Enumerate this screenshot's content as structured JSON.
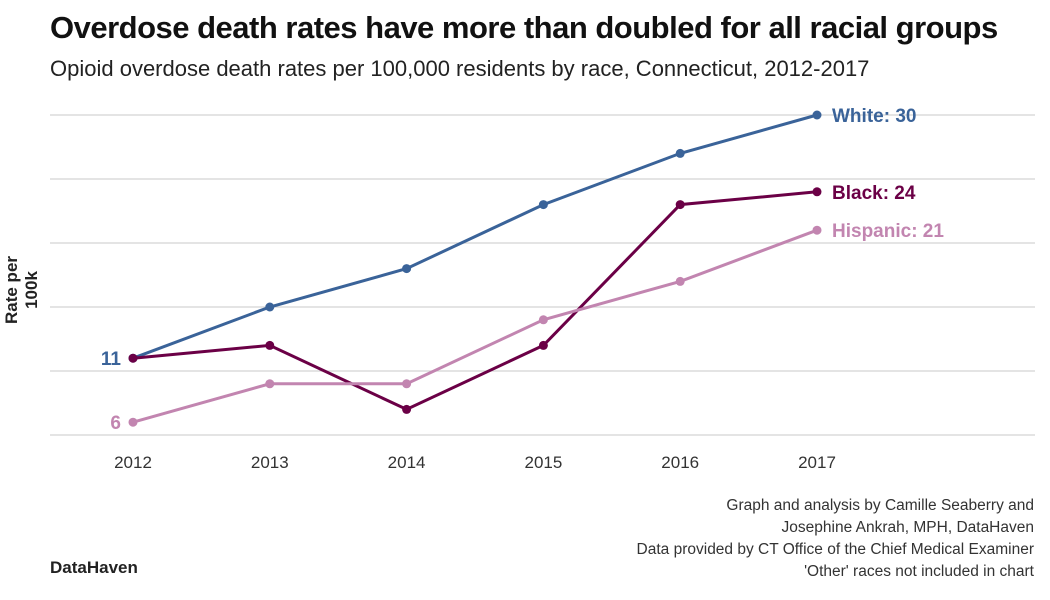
{
  "chart_data": {
    "type": "line",
    "title": "Overdose death rates have more than doubled for all racial groups",
    "subtitle": "Opioid overdose death rates per 100,000 residents by race, Connecticut, 2012-2017",
    "xlabel": "",
    "ylabel": "Rate per 100k",
    "x": [
      "2012",
      "2013",
      "2014",
      "2015",
      "2016",
      "2017"
    ],
    "ylim": [
      5,
      30
    ],
    "yticks": [
      5,
      10,
      15,
      20,
      25,
      30
    ],
    "grid": true,
    "series": [
      {
        "name": "White",
        "color": "#3a6399",
        "values": [
          11,
          15,
          18,
          23,
          27,
          30
        ],
        "start_label": "11",
        "end_label": "White: 30"
      },
      {
        "name": "Black",
        "color": "#6b0046",
        "values": [
          11,
          12,
          7,
          12,
          23,
          24
        ],
        "start_label": "",
        "end_label": "Black: 24"
      },
      {
        "name": "Hispanic",
        "color": "#c285b0",
        "values": [
          6,
          9,
          9,
          14,
          17,
          21
        ],
        "start_label": "6",
        "end_label": "Hispanic: 21"
      }
    ]
  },
  "caption": [
    "Graph and analysis by Camille Seaberry and",
    "Josephine Ankrah, MPH, DataHaven",
    "Data provided by CT Office of the Chief Medical Examiner",
    "'Other' races not included in chart"
  ],
  "logo": "DataHaven"
}
